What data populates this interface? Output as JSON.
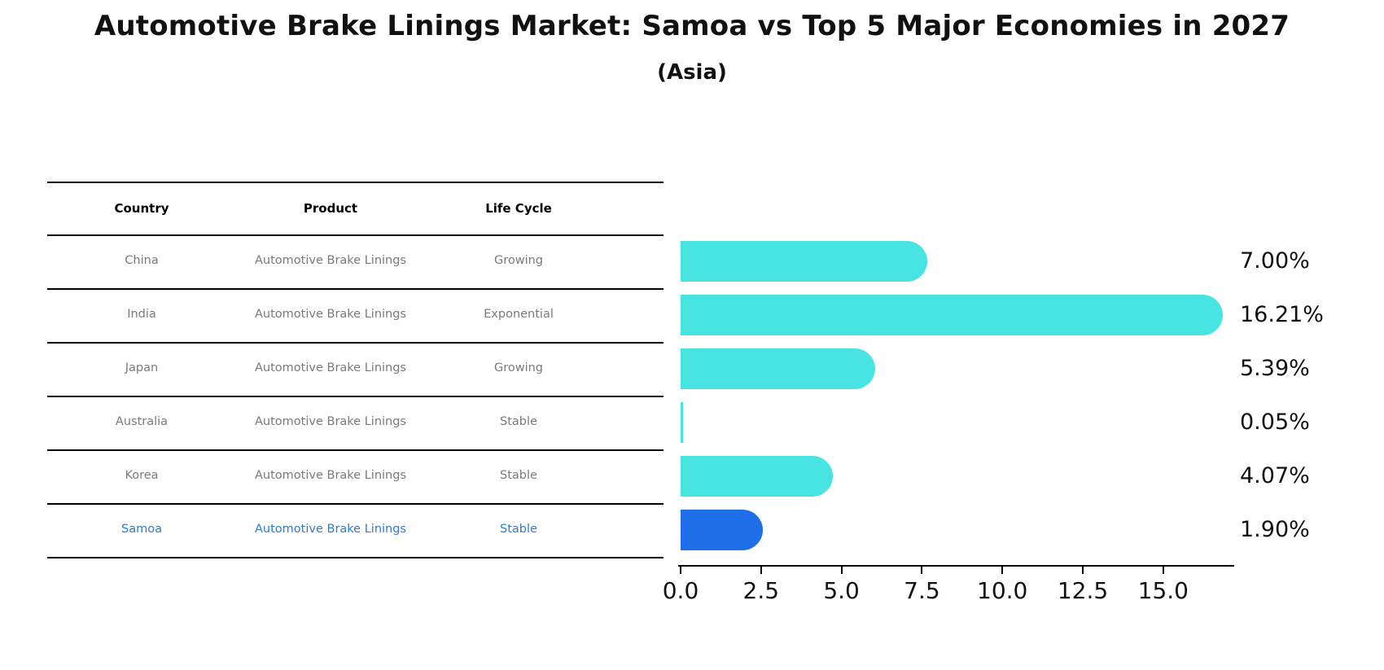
{
  "title": "Automotive Brake Linings Market: Samoa vs Top 5 Major Economies in 2027",
  "subtitle": "(Asia)",
  "colors": {
    "bar_default": "#48E4E1",
    "bar_highlight": "#1E6FE8",
    "highlight_text": "#2E7BC9",
    "cell_text": "#7A7A7A",
    "header_text": "#000000",
    "line": "#000000"
  },
  "table": {
    "headers": [
      "Country",
      "Product",
      "Life Cycle"
    ],
    "rows": [
      {
        "country": "China",
        "product": "Automotive Brake Linings",
        "life_cycle": "Growing",
        "highlight": false
      },
      {
        "country": "India",
        "product": "Automotive Brake Linings",
        "life_cycle": "Exponential",
        "highlight": false
      },
      {
        "country": "Japan",
        "product": "Automotive Brake Linings",
        "life_cycle": "Growing",
        "highlight": false
      },
      {
        "country": "Australia",
        "product": "Automotive Brake Linings",
        "life_cycle": "Stable",
        "highlight": false
      },
      {
        "country": "Korea",
        "product": "Automotive Brake Linings",
        "life_cycle": "Stable",
        "highlight": false
      },
      {
        "country": "Samoa",
        "product": "Automotive Brake Linings",
        "life_cycle": "Stable",
        "highlight": true
      }
    ]
  },
  "chart_data": {
    "type": "bar",
    "orientation": "horizontal",
    "title": "Automotive Brake Linings Market: Samoa vs Top 5 Major Economies in 2027 (Asia)",
    "categories": [
      "China",
      "India",
      "Japan",
      "Australia",
      "Korea",
      "Samoa"
    ],
    "values": [
      7.0,
      16.21,
      5.39,
      0.05,
      4.07,
      1.9
    ],
    "value_labels": [
      "7.00%",
      "16.21%",
      "5.39%",
      "0.05%",
      "4.07%",
      "1.90%"
    ],
    "highlight_category": "Samoa",
    "xlabel": "",
    "ylabel": "",
    "xlim": [
      0.0,
      17.2
    ],
    "x_ticks": [
      "0.0",
      "2.5",
      "5.0",
      "7.5",
      "10.0",
      "12.5",
      "15.0"
    ],
    "x_tick_values": [
      0.0,
      2.5,
      5.0,
      7.5,
      10.0,
      12.5,
      15.0
    ],
    "grid": false,
    "legend": false
  }
}
